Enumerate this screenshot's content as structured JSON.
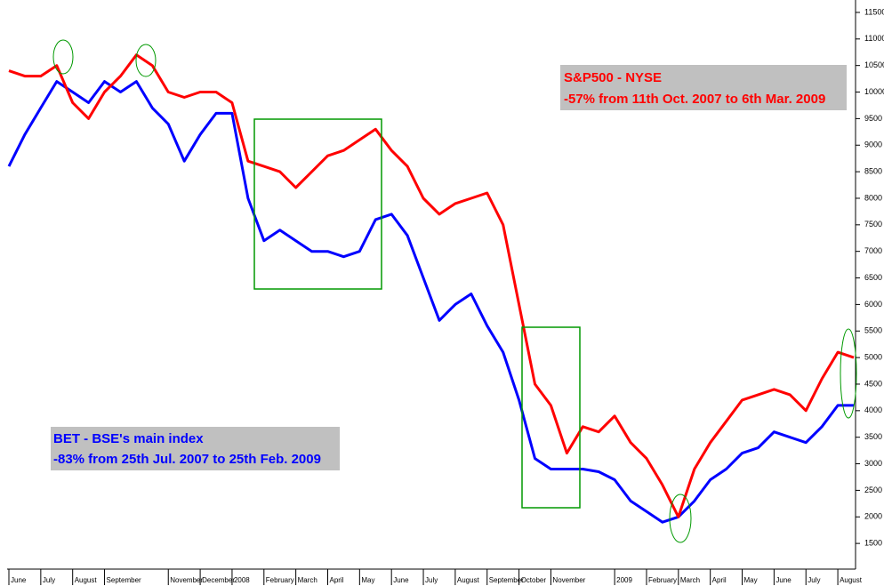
{
  "chart_data": {
    "type": "line",
    "categories": [
      "June",
      null,
      "July",
      null,
      "August",
      null,
      "September",
      null,
      null,
      null,
      "November",
      null,
      "December",
      null,
      "2008",
      null,
      "February",
      null,
      "March",
      null,
      "April",
      null,
      "May",
      null,
      "June",
      null,
      "July",
      null,
      "August",
      null,
      "September",
      null,
      "October",
      null,
      "November",
      null,
      null,
      null,
      "2009",
      null,
      "February",
      null,
      "March",
      null,
      "April",
      null,
      "May",
      null,
      "June",
      null,
      "July",
      null,
      "August",
      null
    ],
    "series": [
      {
        "color": "#0000ff",
        "values": [
          8600,
          9200,
          9700,
          10200,
          10000,
          9800,
          10200,
          10000,
          10200,
          9700,
          9400,
          8700,
          9200,
          9600,
          9600,
          8000,
          7200,
          7400,
          7200,
          7000,
          7000,
          6900,
          7000,
          7600,
          7700,
          7300,
          6500,
          5700,
          6000,
          6200,
          5600,
          5100,
          4200,
          3100,
          2900,
          2900,
          2900,
          2850,
          2700,
          2300,
          2100,
          1900,
          2000,
          2300,
          2700,
          2900,
          3200,
          3300,
          3600,
          3500,
          3400,
          3700,
          4100,
          4100
        ]
      },
      {
        "color": "#ff0000",
        "values": [
          10400,
          10300,
          10300,
          10500,
          9800,
          9500,
          10000,
          10300,
          10700,
          10500,
          10000,
          9900,
          10000,
          10000,
          9800,
          8700,
          8600,
          8500,
          8200,
          8500,
          8800,
          8900,
          9100,
          9300,
          8900,
          8600,
          8000,
          7700,
          7900,
          8000,
          8100,
          7500,
          6000,
          4500,
          4100,
          3200,
          3700,
          3600,
          3900,
          3400,
          3100,
          2600,
          2000,
          2900,
          3400,
          3800,
          4200,
          4300,
          4400,
          4300,
          4000,
          4600,
          5100,
          5000
        ]
      }
    ],
    "annotations": [
      {
        "lines": [
          "S&P500 - NYSE",
          "-57% from 11th Oct. 2007 to 6th Mar. 2009"
        ]
      },
      {
        "lines": [
          "BET - BSE's main index",
          "-83% from 25th Jul. 2007 to 25th Feb. 2009"
        ]
      }
    ],
    "ylim": [
      1050,
      11650
    ],
    "yticks": [
      1500,
      2000,
      2500,
      3000,
      3500,
      4000,
      4500,
      5000,
      5500,
      6000,
      6500,
      7000,
      7500,
      8000,
      8500,
      9000,
      9500,
      10000,
      10500,
      11000,
      11500
    ]
  }
}
